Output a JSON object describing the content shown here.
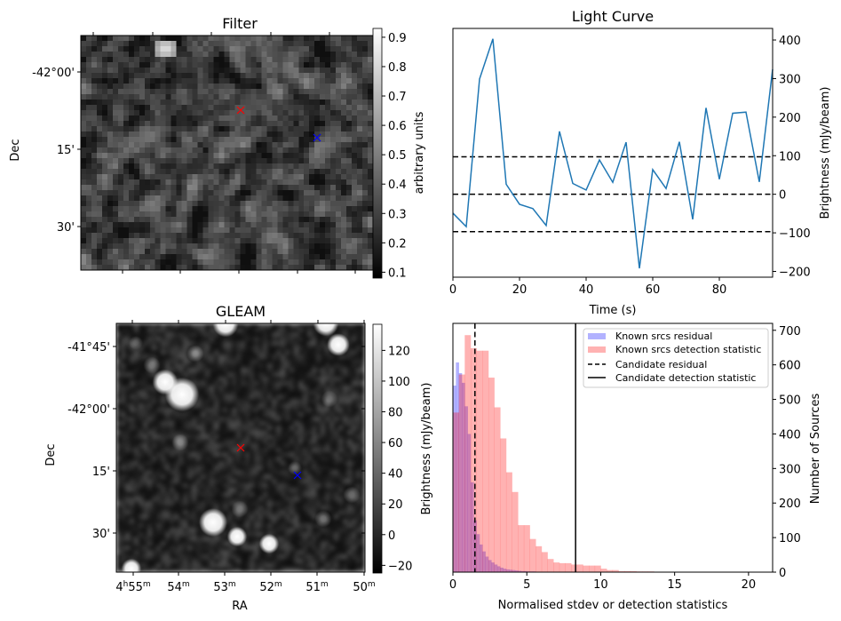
{
  "chart_data": [
    {
      "type": "image",
      "title": "Filter",
      "ylabel": "Dec",
      "yticks": [
        "-42°00'",
        "15'",
        "30'"
      ],
      "colorbar": {
        "label": "arbitrary units",
        "ticks": [
          "0.1",
          "0.2",
          "0.3",
          "0.4",
          "0.5",
          "0.6",
          "0.7",
          "0.8",
          "0.9"
        ],
        "range": [
          0.08,
          0.93
        ],
        "colormap": "gray"
      },
      "markers": [
        {
          "symbol": "x",
          "color": "#ff0000"
        },
        {
          "symbol": "x",
          "color": "#0000ff"
        }
      ]
    },
    {
      "type": "line",
      "title": "Light Curve",
      "xlabel": "Time (s)",
      "ylabel": "Brightness (mJy/beam)",
      "xlim": [
        0,
        96
      ],
      "ylim": [
        -215,
        430
      ],
      "xticks": [
        0,
        20,
        40,
        60,
        80
      ],
      "yticks": [
        -200,
        -100,
        0,
        100,
        200,
        300,
        400
      ],
      "color": "#1f77b4",
      "x": [
        0,
        4,
        8,
        12,
        16,
        20,
        24,
        28,
        32,
        36,
        40,
        44,
        48,
        52,
        56,
        60,
        64,
        68,
        72,
        76,
        80,
        84,
        88,
        92,
        96
      ],
      "y": [
        -49,
        -84,
        299,
        403,
        26,
        -26,
        -37,
        -81,
        163,
        28,
        11,
        89,
        31,
        135,
        -192,
        64,
        15,
        136,
        -65,
        224,
        39,
        210,
        213,
        32,
        324
      ],
      "hlines": [
        {
          "y": 97,
          "style": "dashed"
        },
        {
          "y": 0,
          "style": "dashed"
        },
        {
          "y": -97,
          "style": "dashed"
        }
      ]
    },
    {
      "type": "image",
      "title": "GLEAM",
      "xlabel": "RA",
      "ylabel": "Dec",
      "yticks": [
        "-41°45'",
        "-42°00'",
        "15'",
        "30'"
      ],
      "xticks": [
        {
          "h": "4",
          "m": "55"
        },
        {
          "m": "54"
        },
        {
          "m": "53"
        },
        {
          "m": "52"
        },
        {
          "m": "51"
        },
        {
          "m": "50"
        }
      ],
      "ra_unit_h": "h",
      "ra_unit_m": "m",
      "colorbar": {
        "label": "Brightness (mJy/beam)",
        "ticks": [
          "−20",
          "0",
          "20",
          "40",
          "60",
          "80",
          "100",
          "120"
        ],
        "range": [
          -25,
          137
        ],
        "colormap": "gray"
      },
      "markers": [
        {
          "symbol": "x",
          "color": "#ff0000"
        },
        {
          "symbol": "x",
          "color": "#0000ff"
        }
      ]
    },
    {
      "type": "histogram",
      "xlabel": "Normalised stdev or detection statistics",
      "ylabel": "Number of Sources",
      "xlim": [
        0,
        21.63
      ],
      "ylim": [
        0,
        720
      ],
      "xticks": [
        0,
        5,
        10,
        15,
        20
      ],
      "yticks": [
        0,
        100,
        200,
        300,
        400,
        500,
        600,
        700
      ],
      "legend_position": "top-right",
      "series": [
        {
          "name": "Known srcs residual",
          "color": "#0000ff",
          "alpha": 0.3,
          "bin_width": 0.2,
          "bin_start": 0,
          "counts": [
            540,
            607,
            576,
            548,
            480,
            400,
            260,
            150,
            110,
            80,
            60,
            45,
            35,
            28,
            22,
            17,
            13,
            10,
            8,
            7,
            6,
            5,
            4,
            3,
            3,
            2,
            2,
            2,
            1,
            1,
            1,
            1,
            1,
            1,
            1,
            1
          ]
        },
        {
          "name": "Known srcs detection statistic",
          "color": "#ff0000",
          "alpha": 0.3,
          "bin_width": 0.4,
          "bin_start": 0,
          "counts": [
            462,
            572,
            686,
            648,
            641,
            641,
            563,
            477,
            387,
            289,
            232,
            136,
            136,
            96,
            75,
            58,
            38,
            28,
            26,
            26,
            22,
            22,
            19,
            19,
            19,
            10,
            6,
            6,
            3,
            3,
            3,
            2,
            2,
            2,
            1,
            1,
            0,
            1,
            1,
            1,
            0,
            1,
            0,
            1,
            0,
            1,
            0,
            0,
            1,
            0,
            0,
            1
          ]
        }
      ],
      "vlines": [
        {
          "name": "Candidate residual",
          "x": 1.49,
          "style": "dashed"
        },
        {
          "name": "Candidate detection statistic",
          "x": 8.3,
          "style": "solid"
        }
      ]
    }
  ]
}
